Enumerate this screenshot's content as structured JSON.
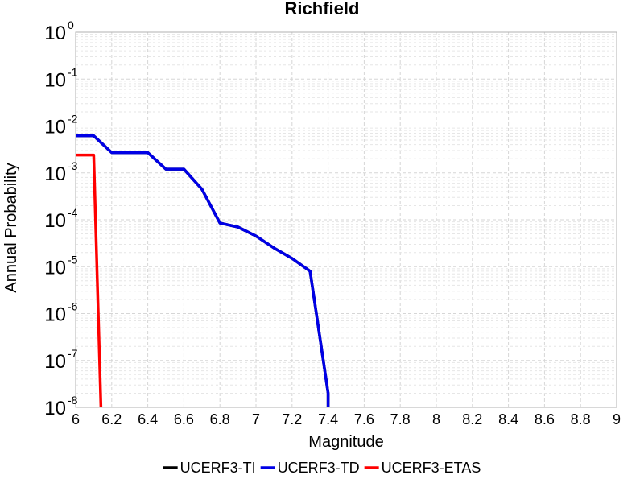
{
  "chart_data": {
    "type": "line",
    "title": "Richfield",
    "xlabel": "Magnitude",
    "ylabel": "Annual Probability",
    "xlim": [
      6,
      9
    ],
    "ylim": [
      1e-08,
      1
    ],
    "yscale": "log",
    "grid": true,
    "legend_position": "bottom-center",
    "x_ticks": [
      "6",
      "6.2",
      "6.4",
      "6.6",
      "6.8",
      "7",
      "7.2",
      "7.4",
      "7.6",
      "7.8",
      "8",
      "8.2",
      "8.4",
      "8.6",
      "8.8",
      "9"
    ],
    "y_ticks": [
      {
        "base": "10",
        "exp": "0",
        "value": 1
      },
      {
        "base": "10",
        "exp": "-1",
        "value": 0.1
      },
      {
        "base": "10",
        "exp": "-2",
        "value": 0.01
      },
      {
        "base": "10",
        "exp": "-3",
        "value": 0.001
      },
      {
        "base": "10",
        "exp": "-4",
        "value": 0.0001
      },
      {
        "base": "10",
        "exp": "-5",
        "value": 1e-05
      },
      {
        "base": "10",
        "exp": "-6",
        "value": 1e-06
      },
      {
        "base": "10",
        "exp": "-7",
        "value": 1e-07
      },
      {
        "base": "10",
        "exp": "-8",
        "value": 1e-08
      }
    ],
    "series": [
      {
        "name": "UCERF3-TI",
        "color": "#000000",
        "x": [
          6.0,
          6.1,
          6.2,
          6.3,
          6.4,
          6.5,
          6.6,
          6.7,
          6.8,
          6.9,
          7.0,
          7.1,
          7.2,
          7.3,
          7.4,
          7.4
        ],
        "y": [
          0.0062,
          0.0062,
          0.0027,
          0.0027,
          0.0027,
          0.0012,
          0.0012,
          0.00045,
          8.5e-05,
          7e-05,
          4.5e-05,
          2.5e-05,
          1.5e-05,
          8e-06,
          2e-08,
          1e-08
        ]
      },
      {
        "name": "UCERF3-TD",
        "color": "#0000e6",
        "x": [
          6.0,
          6.1,
          6.2,
          6.3,
          6.4,
          6.5,
          6.6,
          6.7,
          6.8,
          6.9,
          7.0,
          7.1,
          7.2,
          7.3,
          7.4,
          7.4
        ],
        "y": [
          0.0062,
          0.0062,
          0.0027,
          0.0027,
          0.0027,
          0.0012,
          0.0012,
          0.00045,
          8.5e-05,
          7e-05,
          4.5e-05,
          2.5e-05,
          1.5e-05,
          8e-06,
          2e-08,
          1e-08
        ]
      },
      {
        "name": "UCERF3-ETAS",
        "color": "#ff0000",
        "x": [
          6.0,
          6.1,
          6.14
        ],
        "y": [
          0.0024,
          0.0024,
          1e-08
        ]
      }
    ]
  }
}
